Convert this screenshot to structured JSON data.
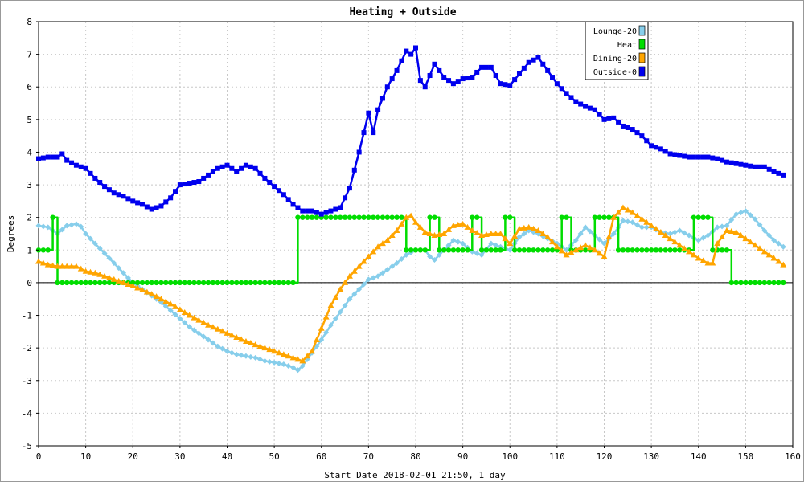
{
  "chart_data": {
    "type": "line",
    "title": "Heating + Outside",
    "xlabel": "Start Date 2018-02-01 21:50, 1 day",
    "ylabel": "Degrees",
    "xlim": [
      0,
      160
    ],
    "ylim": [
      -5,
      8
    ],
    "x_ticks": [
      0,
      10,
      20,
      30,
      40,
      50,
      60,
      70,
      80,
      90,
      100,
      110,
      120,
      130,
      140,
      150,
      160
    ],
    "y_ticks": [
      -5,
      -4,
      -3,
      -2,
      -1,
      0,
      1,
      2,
      3,
      4,
      5,
      6,
      7,
      8
    ],
    "grid": true,
    "legend_position": "top-right",
    "series": [
      {
        "name": "Lounge-20",
        "color": "#87ceeb",
        "marker": "diamond",
        "points": [
          [
            0,
            1.75
          ],
          [
            2,
            1.7
          ],
          [
            4,
            1.5
          ],
          [
            6,
            1.75
          ],
          [
            8,
            1.8
          ],
          [
            9,
            1.72
          ],
          [
            10,
            1.5
          ],
          [
            12,
            1.2
          ],
          [
            14,
            0.9
          ],
          [
            16,
            0.6
          ],
          [
            18,
            0.3
          ],
          [
            20,
            0.0
          ],
          [
            22,
            -0.2
          ],
          [
            24,
            -0.4
          ],
          [
            26,
            -0.6
          ],
          [
            28,
            -0.85
          ],
          [
            30,
            -1.1
          ],
          [
            32,
            -1.35
          ],
          [
            34,
            -1.55
          ],
          [
            36,
            -1.75
          ],
          [
            38,
            -1.95
          ],
          [
            40,
            -2.1
          ],
          [
            42,
            -2.2
          ],
          [
            44,
            -2.25
          ],
          [
            46,
            -2.3
          ],
          [
            48,
            -2.4
          ],
          [
            50,
            -2.45
          ],
          [
            52,
            -2.5
          ],
          [
            54,
            -2.6
          ],
          [
            55,
            -2.68
          ],
          [
            56,
            -2.55
          ],
          [
            58,
            -2.15
          ],
          [
            60,
            -1.75
          ],
          [
            62,
            -1.3
          ],
          [
            64,
            -0.9
          ],
          [
            66,
            -0.5
          ],
          [
            68,
            -0.2
          ],
          [
            70,
            0.1
          ],
          [
            72,
            0.2
          ],
          [
            74,
            0.4
          ],
          [
            76,
            0.6
          ],
          [
            78,
            0.85
          ],
          [
            80,
            1.0
          ],
          [
            82,
            1.0
          ],
          [
            83,
            0.8
          ],
          [
            84,
            0.7
          ],
          [
            86,
            1.0
          ],
          [
            88,
            1.3
          ],
          [
            90,
            1.2
          ],
          [
            92,
            0.95
          ],
          [
            94,
            0.85
          ],
          [
            96,
            1.2
          ],
          [
            98,
            1.1
          ],
          [
            100,
            1.0
          ],
          [
            102,
            1.4
          ],
          [
            104,
            1.6
          ],
          [
            106,
            1.5
          ],
          [
            108,
            1.35
          ],
          [
            110,
            1.2
          ],
          [
            112,
            1.0
          ],
          [
            114,
            1.3
          ],
          [
            116,
            1.7
          ],
          [
            118,
            1.45
          ],
          [
            120,
            1.2
          ],
          [
            122,
            1.5
          ],
          [
            124,
            1.9
          ],
          [
            126,
            1.85
          ],
          [
            128,
            1.7
          ],
          [
            130,
            1.7
          ],
          [
            132,
            1.55
          ],
          [
            134,
            1.5
          ],
          [
            136,
            1.6
          ],
          [
            138,
            1.45
          ],
          [
            140,
            1.3
          ],
          [
            142,
            1.45
          ],
          [
            144,
            1.7
          ],
          [
            146,
            1.75
          ],
          [
            148,
            2.1
          ],
          [
            150,
            2.2
          ],
          [
            152,
            1.95
          ],
          [
            154,
            1.6
          ],
          [
            156,
            1.3
          ],
          [
            158,
            1.1
          ]
        ]
      },
      {
        "name": "Heat",
        "color": "#00dd00",
        "marker": "circle",
        "points": [
          [
            0,
            1
          ],
          [
            3,
            1
          ],
          [
            3,
            2
          ],
          [
            4,
            2
          ],
          [
            4,
            0
          ],
          [
            55,
            0
          ],
          [
            55,
            2
          ],
          [
            78,
            2
          ],
          [
            78,
            1
          ],
          [
            83,
            1
          ],
          [
            83,
            2
          ],
          [
            85,
            2
          ],
          [
            85,
            1
          ],
          [
            92,
            1
          ],
          [
            92,
            2
          ],
          [
            94,
            2
          ],
          [
            94,
            1
          ],
          [
            99,
            1
          ],
          [
            99,
            2
          ],
          [
            101,
            2
          ],
          [
            101,
            1
          ],
          [
            111,
            1
          ],
          [
            111,
            2
          ],
          [
            113,
            2
          ],
          [
            113,
            1
          ],
          [
            118,
            1
          ],
          [
            118,
            2
          ],
          [
            123,
            2
          ],
          [
            123,
            1
          ],
          [
            139,
            1
          ],
          [
            139,
            2
          ],
          [
            143,
            2
          ],
          [
            143,
            1
          ],
          [
            147,
            1
          ],
          [
            147,
            0
          ],
          [
            158,
            0
          ]
        ]
      },
      {
        "name": "Dining-20",
        "color": "#ffa500",
        "marker": "triangle",
        "points": [
          [
            0,
            0.65
          ],
          [
            2,
            0.55
          ],
          [
            4,
            0.5
          ],
          [
            8,
            0.5
          ],
          [
            10,
            0.35
          ],
          [
            12,
            0.3
          ],
          [
            16,
            0.1
          ],
          [
            20,
            -0.1
          ],
          [
            24,
            -0.35
          ],
          [
            28,
            -0.65
          ],
          [
            32,
            -1.0
          ],
          [
            36,
            -1.3
          ],
          [
            40,
            -1.55
          ],
          [
            44,
            -1.8
          ],
          [
            48,
            -2.0
          ],
          [
            52,
            -2.2
          ],
          [
            54,
            -2.3
          ],
          [
            56,
            -2.4
          ],
          [
            58,
            -2.1
          ],
          [
            60,
            -1.4
          ],
          [
            62,
            -0.7
          ],
          [
            64,
            -0.2
          ],
          [
            66,
            0.2
          ],
          [
            68,
            0.5
          ],
          [
            70,
            0.8
          ],
          [
            72,
            1.1
          ],
          [
            74,
            1.3
          ],
          [
            76,
            1.6
          ],
          [
            78,
            2.0
          ],
          [
            79,
            2.05
          ],
          [
            80,
            1.85
          ],
          [
            82,
            1.55
          ],
          [
            84,
            1.45
          ],
          [
            86,
            1.5
          ],
          [
            88,
            1.75
          ],
          [
            90,
            1.8
          ],
          [
            92,
            1.6
          ],
          [
            94,
            1.45
          ],
          [
            96,
            1.5
          ],
          [
            98,
            1.5
          ],
          [
            100,
            1.2
          ],
          [
            102,
            1.65
          ],
          [
            104,
            1.7
          ],
          [
            106,
            1.6
          ],
          [
            108,
            1.4
          ],
          [
            110,
            1.1
          ],
          [
            112,
            0.85
          ],
          [
            114,
            1.0
          ],
          [
            116,
            1.15
          ],
          [
            118,
            1.0
          ],
          [
            120,
            0.8
          ],
          [
            122,
            2.0
          ],
          [
            124,
            2.3
          ],
          [
            126,
            2.15
          ],
          [
            128,
            1.95
          ],
          [
            130,
            1.75
          ],
          [
            132,
            1.55
          ],
          [
            134,
            1.35
          ],
          [
            136,
            1.15
          ],
          [
            138,
            0.95
          ],
          [
            140,
            0.75
          ],
          [
            142,
            0.6
          ],
          [
            143,
            0.6
          ],
          [
            144,
            1.2
          ],
          [
            146,
            1.6
          ],
          [
            148,
            1.55
          ],
          [
            150,
            1.35
          ],
          [
            152,
            1.15
          ],
          [
            154,
            0.95
          ],
          [
            156,
            0.75
          ],
          [
            158,
            0.55
          ]
        ]
      },
      {
        "name": "Outside-0",
        "color": "#0000ee",
        "marker": "square",
        "points": [
          [
            0,
            3.8
          ],
          [
            2,
            3.85
          ],
          [
            4,
            3.85
          ],
          [
            5,
            3.95
          ],
          [
            6,
            3.75
          ],
          [
            8,
            3.6
          ],
          [
            10,
            3.5
          ],
          [
            12,
            3.2
          ],
          [
            14,
            2.95
          ],
          [
            16,
            2.75
          ],
          [
            18,
            2.65
          ],
          [
            20,
            2.5
          ],
          [
            22,
            2.4
          ],
          [
            24,
            2.25
          ],
          [
            26,
            2.35
          ],
          [
            28,
            2.6
          ],
          [
            30,
            3.0
          ],
          [
            32,
            3.05
          ],
          [
            34,
            3.1
          ],
          [
            36,
            3.3
          ],
          [
            38,
            3.5
          ],
          [
            40,
            3.6
          ],
          [
            42,
            3.4
          ],
          [
            44,
            3.6
          ],
          [
            46,
            3.5
          ],
          [
            48,
            3.2
          ],
          [
            50,
            2.95
          ],
          [
            52,
            2.7
          ],
          [
            54,
            2.4
          ],
          [
            56,
            2.2
          ],
          [
            58,
            2.2
          ],
          [
            60,
            2.1
          ],
          [
            62,
            2.2
          ],
          [
            64,
            2.3
          ],
          [
            66,
            2.9
          ],
          [
            68,
            4.0
          ],
          [
            70,
            5.2
          ],
          [
            71,
            4.6
          ],
          [
            72,
            5.3
          ],
          [
            74,
            6.0
          ],
          [
            76,
            6.5
          ],
          [
            78,
            7.1
          ],
          [
            79,
            7.0
          ],
          [
            80,
            7.2
          ],
          [
            81,
            6.2
          ],
          [
            82,
            6.0
          ],
          [
            84,
            6.7
          ],
          [
            86,
            6.3
          ],
          [
            88,
            6.1
          ],
          [
            90,
            6.25
          ],
          [
            92,
            6.3
          ],
          [
            94,
            6.6
          ],
          [
            96,
            6.6
          ],
          [
            98,
            6.1
          ],
          [
            100,
            6.05
          ],
          [
            102,
            6.4
          ],
          [
            104,
            6.75
          ],
          [
            106,
            6.9
          ],
          [
            108,
            6.5
          ],
          [
            110,
            6.1
          ],
          [
            112,
            5.8
          ],
          [
            114,
            5.55
          ],
          [
            116,
            5.4
          ],
          [
            118,
            5.3
          ],
          [
            120,
            5.0
          ],
          [
            122,
            5.05
          ],
          [
            124,
            4.8
          ],
          [
            126,
            4.7
          ],
          [
            128,
            4.5
          ],
          [
            130,
            4.2
          ],
          [
            132,
            4.1
          ],
          [
            134,
            3.95
          ],
          [
            136,
            3.9
          ],
          [
            138,
            3.85
          ],
          [
            140,
            3.85
          ],
          [
            142,
            3.85
          ],
          [
            144,
            3.8
          ],
          [
            146,
            3.7
          ],
          [
            148,
            3.65
          ],
          [
            150,
            3.6
          ],
          [
            152,
            3.55
          ],
          [
            154,
            3.55
          ],
          [
            156,
            3.4
          ],
          [
            158,
            3.3
          ]
        ]
      }
    ]
  }
}
